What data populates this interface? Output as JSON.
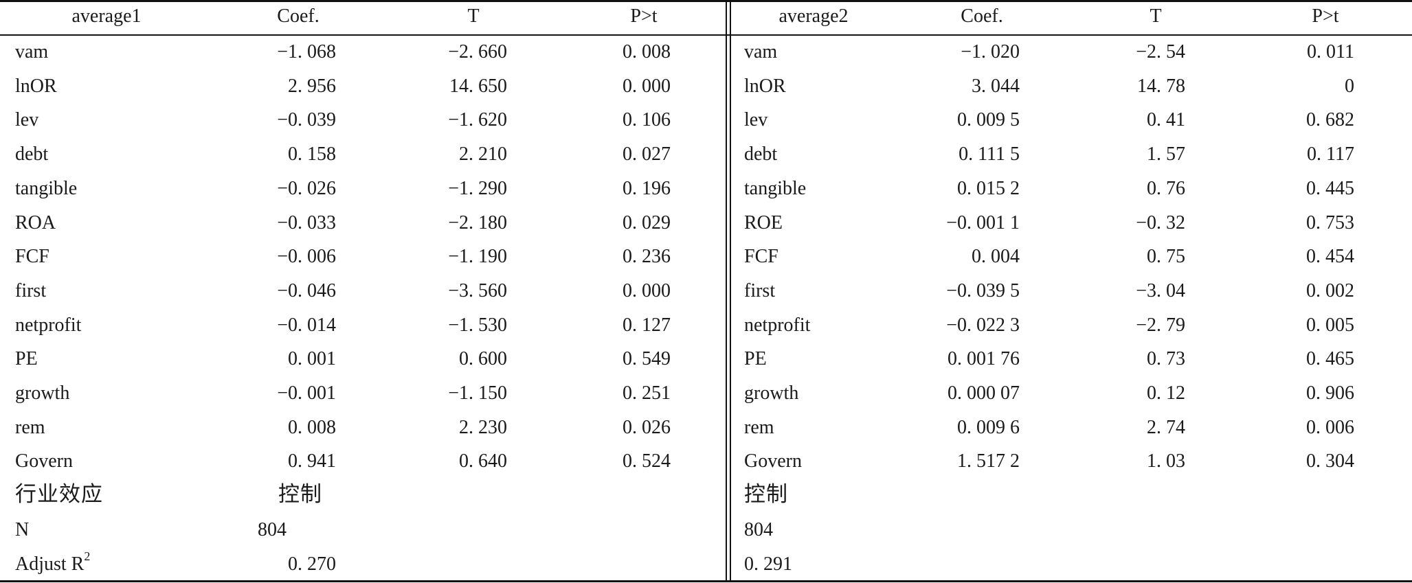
{
  "header": {
    "left": [
      "average1",
      "Coef.",
      "T",
      "P>t"
    ],
    "right": [
      "average2",
      "Coef.",
      "T",
      "P>t"
    ]
  },
  "rows": [
    {
      "left": [
        "vam",
        "−1. 068",
        "−2. 660",
        "0. 008"
      ],
      "right": [
        "vam",
        "−1. 020",
        "−2. 54",
        "0. 011"
      ]
    },
    {
      "left": [
        "lnOR",
        "2. 956",
        "14. 650",
        "0. 000"
      ],
      "right": [
        "lnOR",
        "3. 044",
        "14. 78",
        "0"
      ]
    },
    {
      "left": [
        "lev",
        "−0. 039",
        "−1. 620",
        "0. 106"
      ],
      "right": [
        "lev",
        "0. 009 5",
        "0. 41",
        "0. 682"
      ]
    },
    {
      "left": [
        "debt",
        "0. 158",
        "2. 210",
        "0. 027"
      ],
      "right": [
        "debt",
        "0. 111 5",
        "1. 57",
        "0. 117"
      ]
    },
    {
      "left": [
        "tangible",
        "−0. 026",
        "−1. 290",
        "0. 196"
      ],
      "right": [
        "tangible",
        "0. 015 2",
        "0. 76",
        "0. 445"
      ]
    },
    {
      "left": [
        "ROA",
        "−0. 033",
        "−2. 180",
        "0. 029"
      ],
      "right": [
        "ROE",
        "−0. 001 1",
        "−0. 32",
        "0. 753"
      ]
    },
    {
      "left": [
        "FCF",
        "−0. 006",
        "−1. 190",
        "0. 236"
      ],
      "right": [
        "FCF",
        "0. 004",
        "0. 75",
        "0. 454"
      ]
    },
    {
      "left": [
        "first",
        "−0. 046",
        "−3. 560",
        "0. 000"
      ],
      "right": [
        "first",
        "−0. 039 5",
        "−3. 04",
        "0. 002"
      ]
    },
    {
      "left": [
        "netprofit",
        "−0. 014",
        "−1. 530",
        "0. 127"
      ],
      "right": [
        "netprofit",
        "−0. 022 3",
        "−2. 79",
        "0. 005"
      ]
    },
    {
      "left": [
        "PE",
        "0. 001",
        "0. 600",
        "0. 549"
      ],
      "right": [
        "PE",
        "0. 001 76",
        "0. 73",
        "0. 465"
      ]
    },
    {
      "left": [
        "growth",
        "−0. 001",
        "−1. 150",
        "0. 251"
      ],
      "right": [
        "growth",
        "0. 000 07",
        "0. 12",
        "0. 906"
      ]
    },
    {
      "left": [
        "rem",
        "0. 008",
        "2. 230",
        "0. 026"
      ],
      "right": [
        "rem",
        "0. 009 6",
        "2. 74",
        "0. 006"
      ]
    },
    {
      "left": [
        "Govern",
        "0. 941",
        "0. 640",
        "0. 524"
      ],
      "right": [
        "Govern",
        "1. 517 2",
        "1. 03",
        "0. 304"
      ]
    }
  ],
  "footer": {
    "industry": {
      "label": "行业效应",
      "left_value": "控制",
      "right_value": "控制"
    },
    "n": {
      "label": "N",
      "left_value": "804",
      "right_value": "804"
    },
    "adj_r2": {
      "label": "Adjust R",
      "superscript": "2",
      "left_value": "0. 270",
      "right_value": "0. 291"
    }
  }
}
